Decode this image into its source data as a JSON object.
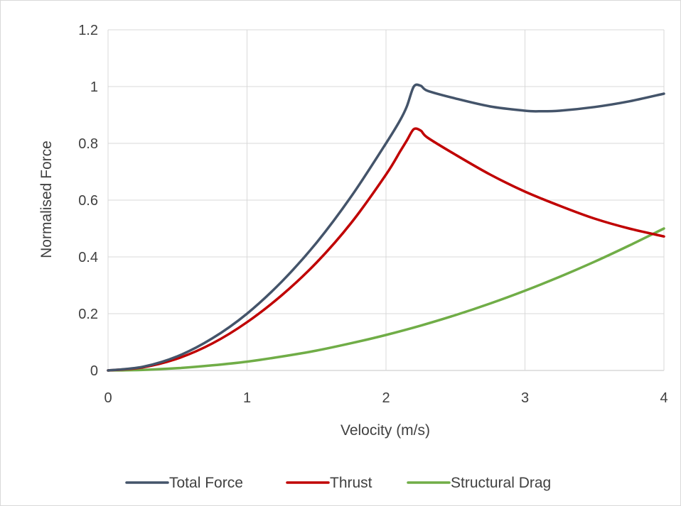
{
  "chart_data": {
    "type": "line",
    "title": "",
    "xlabel": "Velocity (m/s)",
    "ylabel": "Normalised  Force",
    "xlim": [
      0,
      4
    ],
    "ylim": [
      0,
      1.2
    ],
    "x_ticks": [
      "0",
      "1",
      "2",
      "3",
      "4"
    ],
    "y_ticks": [
      "0",
      "0.2",
      "0.4",
      "0.6",
      "0.8",
      "1",
      "1.2"
    ],
    "grid": true,
    "legend_position": "bottom",
    "series": [
      {
        "name": "Total Force",
        "color": "#44546a",
        "points": [
          [
            0,
            0
          ],
          [
            0.25,
            0.013
          ],
          [
            0.5,
            0.05
          ],
          [
            0.75,
            0.113
          ],
          [
            1,
            0.2
          ],
          [
            1.25,
            0.313
          ],
          [
            1.5,
            0.45
          ],
          [
            1.75,
            0.613
          ],
          [
            2,
            0.8
          ],
          [
            2.1,
            0.88
          ],
          [
            2.15,
            0.93
          ],
          [
            2.2,
            1.0
          ],
          [
            2.25,
            1.003
          ],
          [
            2.3,
            0.985
          ],
          [
            2.5,
            0.958
          ],
          [
            2.75,
            0.93
          ],
          [
            3,
            0.915
          ],
          [
            3.1,
            0.913
          ],
          [
            3.25,
            0.915
          ],
          [
            3.5,
            0.928
          ],
          [
            3.75,
            0.948
          ],
          [
            4,
            0.975
          ]
        ]
      },
      {
        "name": "Thrust",
        "color": "#c00000",
        "points": [
          [
            0,
            0
          ],
          [
            0.25,
            0.011
          ],
          [
            0.5,
            0.042
          ],
          [
            0.75,
            0.095
          ],
          [
            1,
            0.17
          ],
          [
            1.25,
            0.265
          ],
          [
            1.5,
            0.38
          ],
          [
            1.75,
            0.52
          ],
          [
            2,
            0.69
          ],
          [
            2.1,
            0.77
          ],
          [
            2.15,
            0.81
          ],
          [
            2.2,
            0.85
          ],
          [
            2.25,
            0.845
          ],
          [
            2.3,
            0.82
          ],
          [
            2.5,
            0.76
          ],
          [
            2.75,
            0.69
          ],
          [
            3,
            0.63
          ],
          [
            3.25,
            0.58
          ],
          [
            3.5,
            0.535
          ],
          [
            3.75,
            0.5
          ],
          [
            4,
            0.472
          ]
        ]
      },
      {
        "name": "Structural Drag",
        "color": "#70ad47",
        "points": [
          [
            0,
            0
          ],
          [
            0.25,
            0.002
          ],
          [
            0.5,
            0.008
          ],
          [
            0.75,
            0.018
          ],
          [
            1,
            0.031
          ],
          [
            1.25,
            0.049
          ],
          [
            1.5,
            0.07
          ],
          [
            1.75,
            0.096
          ],
          [
            2,
            0.125
          ],
          [
            2.25,
            0.158
          ],
          [
            2.5,
            0.195
          ],
          [
            2.75,
            0.236
          ],
          [
            3,
            0.281
          ],
          [
            3.25,
            0.33
          ],
          [
            3.5,
            0.383
          ],
          [
            3.75,
            0.44
          ],
          [
            4,
            0.5
          ]
        ]
      }
    ]
  }
}
